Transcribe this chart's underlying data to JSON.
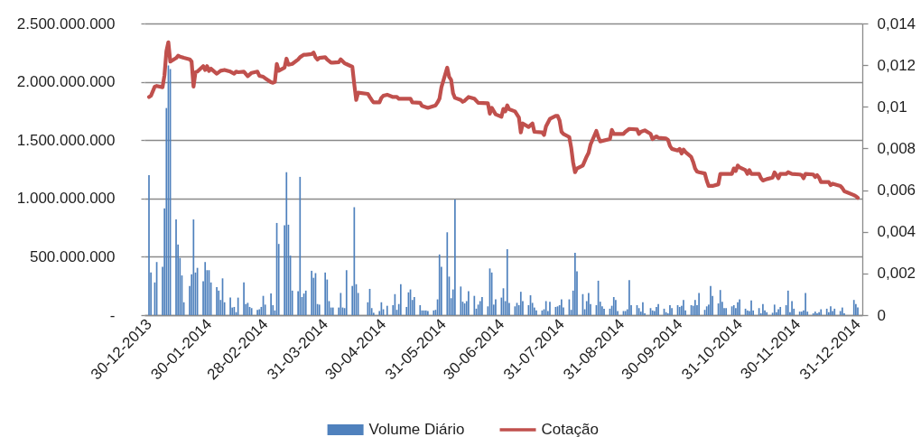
{
  "chart_data": {
    "type": "bar",
    "x": [
      "2013-12-30",
      "2013-12-31",
      "2014-01-02",
      "2014-01-03",
      "2014-01-06",
      "2014-01-07",
      "2014-01-08",
      "2014-01-09",
      "2014-01-10",
      "2014-01-13",
      "2014-01-14",
      "2014-01-15",
      "2014-01-16",
      "2014-01-17",
      "2014-01-20",
      "2014-01-21",
      "2014-01-22",
      "2014-01-23",
      "2014-01-24",
      "2014-01-27",
      "2014-01-28",
      "2014-01-29",
      "2014-01-30",
      "2014-01-31",
      "2014-02-03",
      "2014-02-04",
      "2014-02-05",
      "2014-02-06",
      "2014-02-07",
      "2014-02-10",
      "2014-02-11",
      "2014-02-12",
      "2014-02-13",
      "2014-02-14",
      "2014-02-17",
      "2014-02-18",
      "2014-02-19",
      "2014-02-20",
      "2014-02-21",
      "2014-02-24",
      "2014-02-25",
      "2014-02-26",
      "2014-02-27",
      "2014-02-28",
      "2014-03-03",
      "2014-03-04",
      "2014-03-05",
      "2014-03-06",
      "2014-03-07",
      "2014-03-10",
      "2014-03-11",
      "2014-03-12",
      "2014-03-13",
      "2014-03-14",
      "2014-03-17",
      "2014-03-18",
      "2014-03-19",
      "2014-03-20",
      "2014-03-21",
      "2014-03-24",
      "2014-03-25",
      "2014-03-26",
      "2014-03-27",
      "2014-03-28",
      "2014-03-31",
      "2014-04-01",
      "2014-04-02",
      "2014-04-03",
      "2014-04-04",
      "2014-04-07",
      "2014-04-08",
      "2014-04-09",
      "2014-04-10",
      "2014-04-11",
      "2014-04-14",
      "2014-04-15",
      "2014-04-16",
      "2014-04-17",
      "2014-04-22",
      "2014-04-23",
      "2014-04-24",
      "2014-04-25",
      "2014-04-28",
      "2014-04-29",
      "2014-04-30",
      "2014-05-02",
      "2014-05-05",
      "2014-05-06",
      "2014-05-07",
      "2014-05-08",
      "2014-05-09",
      "2014-05-12",
      "2014-05-13",
      "2014-05-14",
      "2014-05-15",
      "2014-05-16",
      "2014-05-19",
      "2014-05-20",
      "2014-05-21",
      "2014-05-22",
      "2014-05-23",
      "2014-05-26",
      "2014-05-27",
      "2014-05-28",
      "2014-05-29",
      "2014-05-30",
      "2014-06-02",
      "2014-06-03",
      "2014-06-04",
      "2014-06-05",
      "2014-06-06",
      "2014-06-09",
      "2014-06-10",
      "2014-06-11",
      "2014-06-12",
      "2014-06-13",
      "2014-06-16",
      "2014-06-17",
      "2014-06-18",
      "2014-06-19",
      "2014-06-20",
      "2014-06-23",
      "2014-06-24",
      "2014-06-25",
      "2014-06-26",
      "2014-06-27",
      "2014-06-30",
      "2014-07-01",
      "2014-07-02",
      "2014-07-03",
      "2014-07-04",
      "2014-07-07",
      "2014-07-08",
      "2014-07-09",
      "2014-07-10",
      "2014-07-11",
      "2014-07-14",
      "2014-07-15",
      "2014-07-16",
      "2014-07-17",
      "2014-07-18",
      "2014-07-21",
      "2014-07-22",
      "2014-07-23",
      "2014-07-24",
      "2014-07-25",
      "2014-07-28",
      "2014-07-29",
      "2014-07-30",
      "2014-07-31",
      "2014-08-01",
      "2014-08-04",
      "2014-08-05",
      "2014-08-06",
      "2014-08-07",
      "2014-08-08",
      "2014-08-11",
      "2014-08-12",
      "2014-08-13",
      "2014-08-14",
      "2014-08-15",
      "2014-08-18",
      "2014-08-19",
      "2014-08-20",
      "2014-08-21",
      "2014-08-22",
      "2014-08-25",
      "2014-08-26",
      "2014-08-27",
      "2014-08-28",
      "2014-08-29",
      "2014-09-01",
      "2014-09-02",
      "2014-09-03",
      "2014-09-04",
      "2014-09-05",
      "2014-09-08",
      "2014-09-09",
      "2014-09-10",
      "2014-09-11",
      "2014-09-12",
      "2014-09-15",
      "2014-09-16",
      "2014-09-17",
      "2014-09-18",
      "2014-09-19",
      "2014-09-22",
      "2014-09-23",
      "2014-09-24",
      "2014-09-25",
      "2014-09-26",
      "2014-09-29",
      "2014-09-30",
      "2014-10-01",
      "2014-10-02",
      "2014-10-03",
      "2014-10-06",
      "2014-10-07",
      "2014-10-08",
      "2014-10-09",
      "2014-10-10",
      "2014-10-13",
      "2014-10-14",
      "2014-10-15",
      "2014-10-16",
      "2014-10-17",
      "2014-10-20",
      "2014-10-21",
      "2014-10-22",
      "2014-10-23",
      "2014-10-24",
      "2014-10-27",
      "2014-10-28",
      "2014-10-29",
      "2014-10-30",
      "2014-10-31",
      "2014-11-03",
      "2014-11-04",
      "2014-11-05",
      "2014-11-06",
      "2014-11-07",
      "2014-11-10",
      "2014-11-11",
      "2014-11-12",
      "2014-11-13",
      "2014-11-14",
      "2014-11-17",
      "2014-11-18",
      "2014-11-19",
      "2014-11-20",
      "2014-11-21",
      "2014-11-24",
      "2014-11-25",
      "2014-11-26",
      "2014-11-27",
      "2014-11-28",
      "2014-12-01",
      "2014-12-02",
      "2014-12-03",
      "2014-12-04",
      "2014-12-05",
      "2014-12-08",
      "2014-12-09",
      "2014-12-10",
      "2014-12-11",
      "2014-12-12",
      "2014-12-15",
      "2014-12-16",
      "2014-12-17",
      "2014-12-18",
      "2014-12-19",
      "2014-12-22",
      "2014-12-23",
      "2014-12-24",
      "2014-12-29",
      "2014-12-30",
      "2014-12-31"
    ],
    "xlim": [
      "2013-12-30",
      "2014-12-31"
    ],
    "xticks": [
      {
        "value": "2013-12-30",
        "label": "30-12-2013"
      },
      {
        "value": "2014-01-30",
        "label": "30-01-2014"
      },
      {
        "value": "2014-02-28",
        "label": "28-02-2014"
      },
      {
        "value": "2014-03-31",
        "label": "31-03-2014"
      },
      {
        "value": "2014-04-30",
        "label": "30-04-2014"
      },
      {
        "value": "2014-05-31",
        "label": "31-05-2014"
      },
      {
        "value": "2014-06-30",
        "label": "30-06-2014"
      },
      {
        "value": "2014-07-31",
        "label": "31-07-2014"
      },
      {
        "value": "2014-08-31",
        "label": "31-08-2014"
      },
      {
        "value": "2014-09-30",
        "label": "30-09-2014"
      },
      {
        "value": "2014-10-31",
        "label": "31-10-2014"
      },
      {
        "value": "2014-11-30",
        "label": "30-11-2014"
      },
      {
        "value": "2014-12-31",
        "label": "31-12-2014"
      }
    ],
    "ylim": [
      0,
      2500000000
    ],
    "yticks": [
      {
        "value": 0,
        "label": "-"
      },
      {
        "value": 500000000,
        "label": "500.000.000"
      },
      {
        "value": 1000000000,
        "label": "1.000.000.000"
      },
      {
        "value": 1500000000,
        "label": "1.500.000.000"
      },
      {
        "value": 2000000000,
        "label": "2.000.000.000"
      },
      {
        "value": 2500000000,
        "label": "2.500.000.000"
      }
    ],
    "y2lim": [
      0,
      0.014
    ],
    "y2ticks": [
      0,
      {
        "value": 0.002,
        "label": "0,002"
      },
      {
        "value": 0.004,
        "label": "0,004"
      },
      {
        "value": 0.006,
        "label": "0,006"
      },
      {
        "value": 0.008,
        "label": "0,008"
      },
      {
        "value": 0.01,
        "label": "0,01"
      },
      {
        "value": 0.012,
        "label": "0,012"
      },
      {
        "value": 0.014,
        "label": "0,014"
      }
    ],
    "grid": "y",
    "legend": "bottom",
    "line_style": "solid",
    "series": [
      {
        "name": "Volume Diário",
        "color": "#4f81bd",
        "values": [
          1200000000,
          365000000,
          280000000,
          455000000,
          415000000,
          915000000,
          1775000000,
          2140000000,
          2110000000,
          820000000,
          605000000,
          490000000,
          340000000,
          110000000,
          250000000,
          350000000,
          820000000,
          365000000,
          405000000,
          290000000,
          455000000,
          385000000,
          385000000,
          280000000,
          240000000,
          210000000,
          130000000,
          315000000,
          110000000,
          150000000,
          65000000,
          70000000,
          25000000,
          150000000,
          280000000,
          95000000,
          105000000,
          70000000,
          60000000,
          45000000,
          50000000,
          70000000,
          165000000,
          90000000,
          185000000,
          85000000,
          40000000,
          790000000,
          610000000,
          770000000,
          1225000000,
          775000000,
          510000000,
          210000000,
          205000000,
          1185000000,
          155000000,
          185000000,
          210000000,
          380000000,
          320000000,
          360000000,
          95000000,
          90000000,
          365000000,
          305000000,
          120000000,
          65000000,
          65000000,
          65000000,
          190000000,
          65000000,
          60000000,
          385000000,
          250000000,
          925000000,
          265000000,
          190000000,
          110000000,
          225000000,
          60000000,
          20000000,
          35000000,
          110000000,
          50000000,
          80000000,
          85000000,
          180000000,
          45000000,
          95000000,
          265000000,
          70000000,
          195000000,
          220000000,
          130000000,
          155000000,
          85000000,
          40000000,
          40000000,
          40000000,
          35000000,
          40000000,
          45000000,
          135000000,
          520000000,
          415000000,
          710000000,
          330000000,
          145000000,
          220000000,
          990000000,
          245000000,
          115000000,
          100000000,
          120000000,
          205000000,
          165000000,
          55000000,
          90000000,
          120000000,
          155000000,
          75000000,
          400000000,
          365000000,
          90000000,
          135000000,
          150000000,
          230000000,
          120000000,
          565000000,
          105000000,
          75000000,
          105000000,
          85000000,
          200000000,
          120000000,
          85000000,
          170000000,
          105000000,
          65000000,
          40000000,
          40000000,
          50000000,
          120000000,
          35000000,
          115000000,
          70000000,
          75000000,
          85000000,
          135000000,
          65000000,
          135000000,
          45000000,
          210000000,
          535000000,
          375000000,
          180000000,
          50000000,
          120000000,
          190000000,
          95000000,
          85000000,
          295000000,
          115000000,
          75000000,
          55000000,
          55000000,
          80000000,
          155000000,
          130000000,
          35000000,
          35000000,
          35000000,
          50000000,
          300000000,
          85000000,
          85000000,
          60000000,
          30000000,
          110000000,
          15000000,
          60000000,
          40000000,
          35000000,
          70000000,
          95000000,
          55000000,
          25000000,
          15000000,
          85000000,
          60000000,
          85000000,
          70000000,
          80000000,
          130000000,
          40000000,
          85000000,
          80000000,
          130000000,
          85000000,
          190000000,
          45000000,
          75000000,
          90000000,
          250000000,
          165000000,
          100000000,
          215000000,
          115000000,
          60000000,
          60000000,
          75000000,
          85000000,
          60000000,
          110000000,
          135000000,
          55000000,
          40000000,
          35000000,
          125000000,
          40000000,
          60000000,
          15000000,
          95000000,
          40000000,
          25000000,
          20000000,
          90000000,
          25000000,
          50000000,
          70000000,
          85000000,
          210000000,
          25000000,
          120000000,
          55000000,
          30000000,
          30000000,
          40000000,
          190000000,
          30000000,
          15000000,
          30000000,
          15000000,
          25000000,
          50000000,
          55000000,
          25000000,
          75000000,
          35000000,
          55000000,
          35000000,
          65000000,
          15000000,
          130000000,
          95000000,
          65000000
        ]
      },
      {
        "name": "Cotação",
        "type": "line",
        "axis": "y2",
        "color": "#c0504d",
        "x": [
          "2013-12-30",
          "2013-12-31",
          "2014-01-02",
          "2014-01-03",
          "2014-01-06",
          "2014-01-07",
          "2014-01-08",
          "2014-01-09",
          "2014-01-10",
          "2014-01-13",
          "2014-01-14",
          "2014-01-15",
          "2014-01-17",
          "2014-01-20",
          "2014-01-21",
          "2014-01-22",
          "2014-01-23",
          "2014-01-24",
          "2014-01-27",
          "2014-01-28",
          "2014-01-29",
          "2014-01-30",
          "2014-01-31",
          "2014-02-03",
          "2014-02-05",
          "2014-02-07",
          "2014-02-10",
          "2014-02-12",
          "2014-02-13",
          "2014-02-14",
          "2014-02-17",
          "2014-02-19",
          "2014-02-21",
          "2014-02-24",
          "2014-02-25",
          "2014-02-27",
          "2014-02-28",
          "2014-03-03",
          "2014-03-04",
          "2014-03-05",
          "2014-03-06",
          "2014-03-07",
          "2014-03-10",
          "2014-03-11",
          "2014-03-12",
          "2014-03-14",
          "2014-03-17",
          "2014-03-18",
          "2014-03-20",
          "2014-03-21",
          "2014-03-24",
          "2014-03-25",
          "2014-03-26",
          "2014-03-27",
          "2014-03-28",
          "2014-03-31",
          "2014-04-01",
          "2014-04-03",
          "2014-04-04",
          "2014-04-07",
          "2014-04-08",
          "2014-04-10",
          "2014-04-11",
          "2014-04-14",
          "2014-04-15",
          "2014-04-16",
          "2014-04-17",
          "2014-04-22",
          "2014-04-23",
          "2014-04-24",
          "2014-04-25",
          "2014-04-28",
          "2014-04-29",
          "2014-04-30",
          "2014-05-02",
          "2014-05-05",
          "2014-05-07",
          "2014-05-08",
          "2014-05-12",
          "2014-05-14",
          "2014-05-15",
          "2014-05-19",
          "2014-05-20",
          "2014-05-23",
          "2014-05-27",
          "2014-05-28",
          "2014-05-29",
          "2014-05-30",
          "2014-06-02",
          "2014-06-03",
          "2014-06-04",
          "2014-06-05",
          "2014-06-06",
          "2014-06-09",
          "2014-06-10",
          "2014-06-11",
          "2014-06-13",
          "2014-06-16",
          "2014-06-18",
          "2014-06-23",
          "2014-06-24",
          "2014-06-25",
          "2014-06-27",
          "2014-06-30",
          "2014-07-01",
          "2014-07-02",
          "2014-07-03",
          "2014-07-04",
          "2014-07-07",
          "2014-07-09",
          "2014-07-10",
          "2014-07-11",
          "2014-07-14",
          "2014-07-16",
          "2014-07-17",
          "2014-07-21",
          "2014-07-22",
          "2014-07-23",
          "2014-07-25",
          "2014-07-28",
          "2014-07-29",
          "2014-07-30",
          "2014-07-31",
          "2014-08-01",
          "2014-08-04",
          "2014-08-05",
          "2014-08-06",
          "2014-08-07",
          "2014-08-08",
          "2014-08-11",
          "2014-08-13",
          "2014-08-14",
          "2014-08-15",
          "2014-08-18",
          "2014-08-19",
          "2014-08-20",
          "2014-08-25",
          "2014-08-26",
          "2014-08-27",
          "2014-09-01",
          "2014-09-02",
          "2014-09-04",
          "2014-09-08",
          "2014-09-09",
          "2014-09-10",
          "2014-09-12",
          "2014-09-15",
          "2014-09-16",
          "2014-09-18",
          "2014-09-19",
          "2014-09-23",
          "2014-09-24",
          "2014-09-25",
          "2014-09-26",
          "2014-09-29",
          "2014-09-30",
          "2014-10-01",
          "2014-10-02",
          "2014-10-03",
          "2014-10-06",
          "2014-10-07",
          "2014-10-08",
          "2014-10-09",
          "2014-10-10",
          "2014-10-13",
          "2014-10-14",
          "2014-10-15",
          "2014-10-17",
          "2014-10-20",
          "2014-10-21",
          "2014-10-27",
          "2014-10-28",
          "2014-10-29",
          "2014-10-30",
          "2014-10-31",
          "2014-11-03",
          "2014-11-04",
          "2014-11-05",
          "2014-11-06",
          "2014-11-10",
          "2014-11-11",
          "2014-11-12",
          "2014-11-14",
          "2014-11-17",
          "2014-11-18",
          "2014-11-19",
          "2014-11-20",
          "2014-11-21",
          "2014-11-24",
          "2014-11-25",
          "2014-11-27",
          "2014-12-01",
          "2014-12-02",
          "2014-12-03",
          "2014-12-04",
          "2014-12-08",
          "2014-12-09",
          "2014-12-10",
          "2014-12-11",
          "2014-12-12",
          "2014-12-16",
          "2014-12-17",
          "2014-12-18",
          "2014-12-22",
          "2014-12-23",
          "2014-12-24",
          "2014-12-29",
          "2014-12-30",
          "2014-12-31"
        ],
        "values": [
          0.01047,
          0.01053,
          0.01097,
          0.011,
          0.01094,
          0.01152,
          0.01267,
          0.0131,
          0.01217,
          0.01234,
          0.01245,
          0.01241,
          0.01235,
          0.01228,
          0.01217,
          0.01097,
          0.01166,
          0.01169,
          0.01195,
          0.01177,
          0.01195,
          0.01172,
          0.01183,
          0.01159,
          0.01173,
          0.01177,
          0.01169,
          0.01159,
          0.01169,
          0.01166,
          0.01169,
          0.01147,
          0.01163,
          0.01169,
          0.01149,
          0.01144,
          0.01137,
          0.01118,
          0.01115,
          0.0112,
          0.01206,
          0.01173,
          0.01188,
          0.01231,
          0.01202,
          0.01206,
          0.01227,
          0.01238,
          0.0125,
          0.0125,
          0.01253,
          0.0126,
          0.01238,
          0.01227,
          0.01235,
          0.01238,
          0.01227,
          0.01212,
          0.01212,
          0.01214,
          0.01228,
          0.01209,
          0.01205,
          0.01192,
          0.01108,
          0.01033,
          0.01068,
          0.01062,
          0.01047,
          0.01033,
          0.01021,
          0.01021,
          0.01043,
          0.01053,
          0.01058,
          0.01047,
          0.01047,
          0.01039,
          0.01039,
          0.01039,
          0.01021,
          0.01019,
          0.01004,
          0.00995,
          0.01007,
          0.01021,
          0.01039,
          0.01094,
          0.01188,
          0.01144,
          0.0113,
          0.01065,
          0.01043,
          0.01033,
          0.01024,
          0.01029,
          0.01047,
          0.01039,
          0.01019,
          0.01017,
          0.00967,
          0.00995,
          0.00964,
          0.00952,
          0.0099,
          0.00978,
          0.01007,
          0.00988,
          0.00978,
          0.00949,
          0.00877,
          0.0092,
          0.00903,
          0.0092,
          0.0088,
          0.00877,
          0.00865,
          0.00906,
          0.00942,
          0.00956,
          0.00956,
          0.00935,
          0.0088,
          0.0087,
          0.00855,
          0.00805,
          0.00733,
          0.00686,
          0.00704,
          0.00718,
          0.00761,
          0.00779,
          0.00819,
          0.00884,
          0.00855,
          0.00834,
          0.00845,
          0.00889,
          0.0087,
          0.0087,
          0.0088,
          0.00894,
          0.00891,
          0.0087,
          0.0088,
          0.00887,
          0.0087,
          0.00845,
          0.00858,
          0.00851,
          0.00848,
          0.00841,
          0.00812,
          0.00798,
          0.0079,
          0.00798,
          0.00776,
          0.00795,
          0.00783,
          0.00759,
          0.00735,
          0.00704,
          0.00689,
          0.00686,
          0.0068,
          0.00646,
          0.0062,
          0.0062,
          0.00628,
          0.00678,
          0.00678,
          0.00704,
          0.00692,
          0.00718,
          0.00709,
          0.00696,
          0.00678,
          0.00696,
          0.00678,
          0.00678,
          0.00657,
          0.00646,
          0.00653,
          0.0066,
          0.00685,
          0.00672,
          0.00657,
          0.00678,
          0.00678,
          0.00686,
          0.00678,
          0.00675,
          0.00672,
          0.00657,
          0.00678,
          0.00675,
          0.00663,
          0.00672,
          0.0066,
          0.00639,
          0.00639,
          0.00624,
          0.00631,
          0.0062,
          0.0061,
          0.00595,
          0.00576,
          0.00571,
          0.00563
        ]
      }
    ]
  }
}
